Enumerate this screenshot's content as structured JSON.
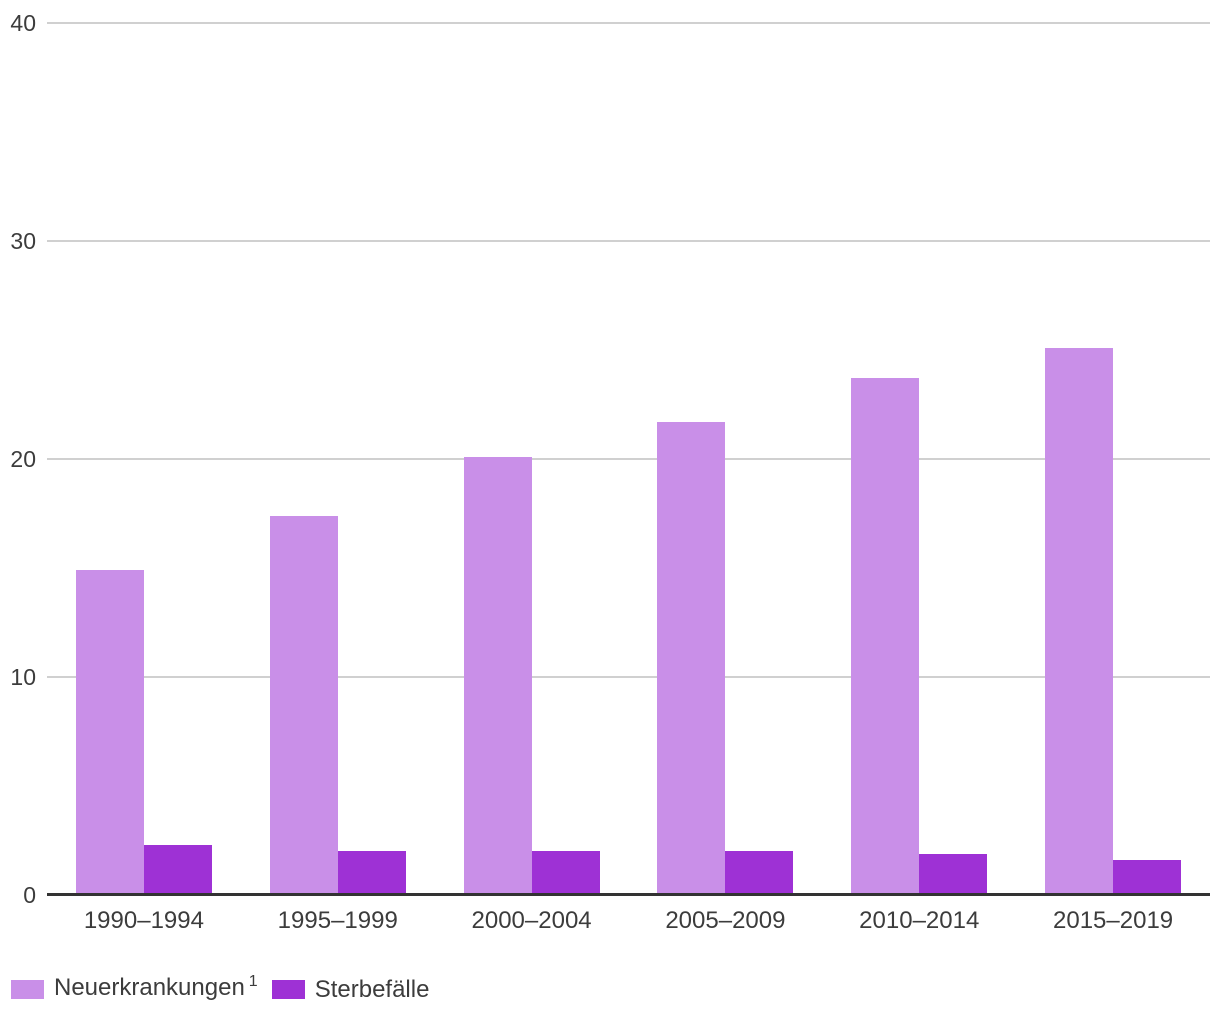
{
  "chart_data": {
    "type": "bar",
    "title": "",
    "xlabel": "",
    "ylabel": "",
    "categories": [
      "1990–1994",
      "1995–1999",
      "2000–2004",
      "2005–2009",
      "2010–2014",
      "2015–2019"
    ],
    "series": [
      {
        "key": "neuerkrankungen",
        "name": "Neuerkrankungen",
        "note_superscript": "1",
        "color": "#C98FE8",
        "values": [
          14.9,
          17.4,
          20.1,
          21.7,
          23.7,
          25.1
        ]
      },
      {
        "key": "sterbefaelle",
        "name": "Sterbefälle",
        "note_superscript": "",
        "color": "#9E31D5",
        "values": [
          2.3,
          2.0,
          2.0,
          2.0,
          1.9,
          1.6
        ]
      }
    ],
    "ylim": [
      0,
      40
    ],
    "yticks": [
      0,
      10,
      20,
      30,
      40
    ],
    "grid": true,
    "legend_position": "bottom-left"
  },
  "colors": {
    "background": "#FFFFFF",
    "grid_line": "#D0D0D0",
    "axis_line": "#333333",
    "text": "#3C3C3C"
  }
}
